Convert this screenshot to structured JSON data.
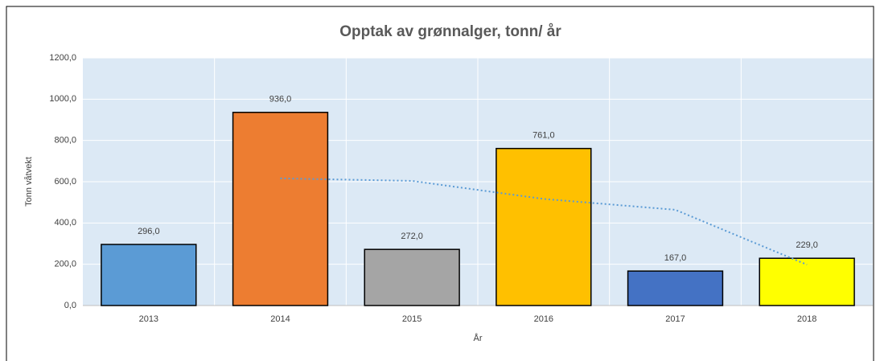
{
  "chart_data": {
    "type": "bar",
    "title": "Opptak av grønnalger, tonn/ år",
    "x_label": "År",
    "y_label": "Tonn våtvekt",
    "categories": [
      "2013",
      "2014",
      "2015",
      "2016",
      "2017",
      "2018"
    ],
    "values": [
      296,
      936,
      272,
      761,
      167,
      229
    ],
    "value_labels": [
      "296,0",
      "936,0",
      "272,0",
      "761,0",
      "167,0",
      "229,0"
    ],
    "colors": [
      "#5b9bd5",
      "#ed7d31",
      "#a5a5a5",
      "#ffc000",
      "#4472c4",
      "#ffff00"
    ],
    "trendline": {
      "values": [
        null,
        616,
        604,
        516.5,
        464,
        198
      ],
      "color": "#5b9bd5"
    },
    "ylim": [
      0,
      1200
    ],
    "yticks": [
      {
        "value": 0,
        "label": "0,0"
      },
      {
        "value": 200,
        "label": "200,0"
      },
      {
        "value": 400,
        "label": "400,0"
      },
      {
        "value": 600,
        "label": "600,0"
      },
      {
        "value": 800,
        "label": "800,0"
      },
      {
        "value": 1000,
        "label": "1000,0"
      },
      {
        "value": 1200,
        "label": "1200,0"
      }
    ],
    "grid": true
  }
}
